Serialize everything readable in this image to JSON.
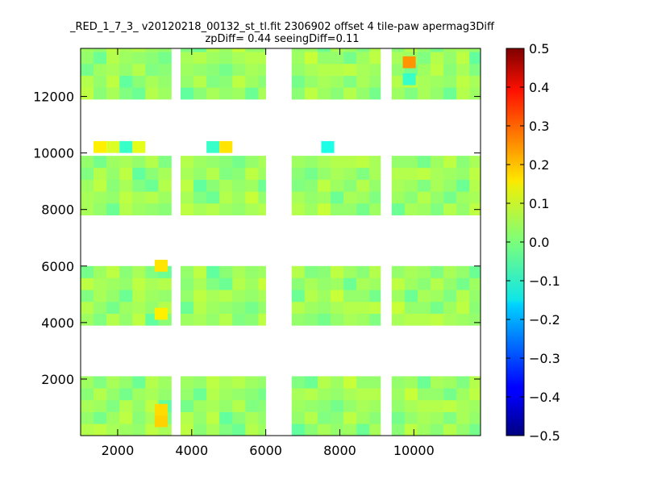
{
  "chart_data": {
    "type": "heatmap",
    "title": "_RED_1_7_3_ v20120218_00132_st_tl.fit 2306902 offset 4 tile-paw apermag3Diff",
    "subtitle": "zpDiff= 0.44 seeingDiff=0.11",
    "xlabel": "",
    "ylabel": "",
    "xlim": [
      1000,
      11800
    ],
    "ylim": [
      0,
      13700
    ],
    "x_ticks": [
      "2000",
      "4000",
      "6000",
      "8000",
      "10000"
    ],
    "x_tick_values": [
      2000,
      4000,
      6000,
      8000,
      10000
    ],
    "y_ticks": [
      "2000",
      "4000",
      "6000",
      "8000",
      "10000",
      "12000"
    ],
    "y_tick_values": [
      2000,
      4000,
      6000,
      8000,
      10000,
      12000
    ],
    "colorbar": {
      "colormap": "jet",
      "range": [
        -0.5,
        0.5
      ],
      "ticks": [
        "0.5",
        "0.4",
        "0.3",
        "0.2",
        "0.1",
        "0.0",
        "−0.1",
        "−0.2",
        "−0.3",
        "−0.4",
        "−0.5"
      ],
      "tick_values": [
        0.5,
        0.4,
        0.3,
        0.2,
        0.1,
        0.0,
        -0.1,
        -0.2,
        -0.3,
        -0.4,
        -0.5
      ]
    },
    "cell_size": [
      350,
      420
    ],
    "column_blocks_x": [
      [
        1000,
        3450
      ],
      [
        3700,
        6000
      ],
      [
        6700,
        9100
      ],
      [
        9400,
        11800
      ]
    ],
    "row_blocks_y": [
      [
        0,
        2100
      ],
      [
        3900,
        6000
      ],
      [
        7800,
        9900
      ],
      [
        11900,
        13700
      ]
    ],
    "values": [
      [
        0.05,
        0.06,
        0.04,
        0.03,
        0.02,
        0.06,
        0.04,
        0.05,
        0.03,
        0.02,
        0.04,
        0.05
      ],
      [
        0.02,
        -0.01,
        0.03,
        0.06,
        0.01,
        0.04,
        0.0,
        -0.02,
        0.05,
        0.03,
        0.07,
        0.02
      ],
      [
        0.04,
        0.03,
        0.0,
        0.05,
        0.02,
        0.06,
        -0.03,
        0.01,
        0.04,
        0.02,
        0.03,
        -0.02
      ],
      [
        0.01,
        0.05,
        0.02,
        -0.01,
        0.03,
        0.04,
        0.02,
        0.05,
        0.0,
        0.01,
        0.06,
        0.03
      ],
      [
        0.03,
        0.0,
        0.04,
        0.02,
        -0.02,
        0.05,
        0.03,
        0.02,
        0.01,
        -0.01,
        0.02,
        0.04
      ]
    ],
    "special_cells": [
      {
        "x": 1350,
        "y": 10000,
        "value": 0.14
      },
      {
        "x": 1700,
        "y": 10000,
        "value": 0.09
      },
      {
        "x": 2050,
        "y": 10000,
        "value": -0.07
      },
      {
        "x": 2400,
        "y": 10000,
        "value": 0.1
      },
      {
        "x": 4400,
        "y": 10000,
        "value": -0.07
      },
      {
        "x": 4750,
        "y": 10000,
        "value": 0.15
      },
      {
        "x": 7500,
        "y": 10000,
        "value": -0.1
      },
      {
        "x": 9700,
        "y": 13000,
        "value": 0.23
      },
      {
        "x": 9700,
        "y": 12400,
        "value": -0.07
      },
      {
        "x": 3000,
        "y": 300,
        "value": 0.17
      },
      {
        "x": 3000,
        "y": 700,
        "value": 0.16
      },
      {
        "x": 3000,
        "y": 5800,
        "value": 0.15
      },
      {
        "x": 3000,
        "y": 4100,
        "value": 0.14
      }
    ]
  }
}
